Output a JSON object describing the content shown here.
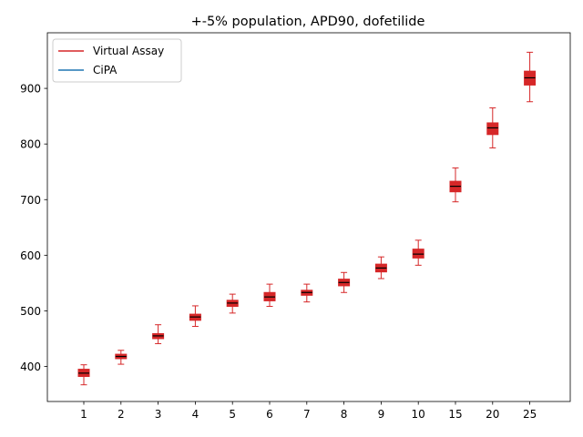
{
  "chart_data": {
    "type": "box",
    "title": "+-5% population, APD90, dofetilide",
    "xlabel": "",
    "ylabel": "",
    "categories": [
      "1",
      "2",
      "3",
      "4",
      "5",
      "6",
      "7",
      "8",
      "9",
      "10",
      "15",
      "20",
      "25"
    ],
    "yticks": [
      400,
      500,
      600,
      700,
      800,
      900
    ],
    "ylim": [
      337,
      1000
    ],
    "grid": false,
    "legend_position": "upper-left",
    "series": [
      {
        "name": "Virtual Assay",
        "color": "#d62728",
        "boxes": [
          {
            "whislo": 367,
            "q1": 382,
            "med": 388,
            "q3": 395,
            "whishi": 403
          },
          {
            "whislo": 404,
            "q1": 414,
            "med": 418,
            "q3": 422,
            "whishi": 429
          },
          {
            "whislo": 441,
            "q1": 450,
            "med": 455,
            "q3": 459,
            "whishi": 475
          },
          {
            "whislo": 472,
            "q1": 483,
            "med": 489,
            "q3": 494,
            "whishi": 509
          },
          {
            "whislo": 496,
            "q1": 508,
            "med": 514,
            "q3": 519,
            "whishi": 530
          },
          {
            "whislo": 508,
            "q1": 518,
            "med": 525,
            "q3": 533,
            "whishi": 548
          },
          {
            "whislo": 516,
            "q1": 528,
            "med": 533,
            "q3": 537,
            "whishi": 548
          },
          {
            "whislo": 533,
            "q1": 545,
            "med": 551,
            "q3": 557,
            "whishi": 569
          },
          {
            "whislo": 558,
            "q1": 570,
            "med": 577,
            "q3": 584,
            "whishi": 597
          },
          {
            "whislo": 582,
            "q1": 595,
            "med": 602,
            "q3": 611,
            "whishi": 627
          },
          {
            "whislo": 696,
            "q1": 714,
            "med": 724,
            "q3": 733,
            "whishi": 757
          },
          {
            "whislo": 793,
            "q1": 817,
            "med": 829,
            "q3": 838,
            "whishi": 865
          },
          {
            "whislo": 876,
            "q1": 906,
            "med": 919,
            "q3": 931,
            "whishi": 965
          }
        ]
      },
      {
        "name": "CiPA",
        "color": "#1f77b4",
        "boxes": []
      }
    ]
  }
}
